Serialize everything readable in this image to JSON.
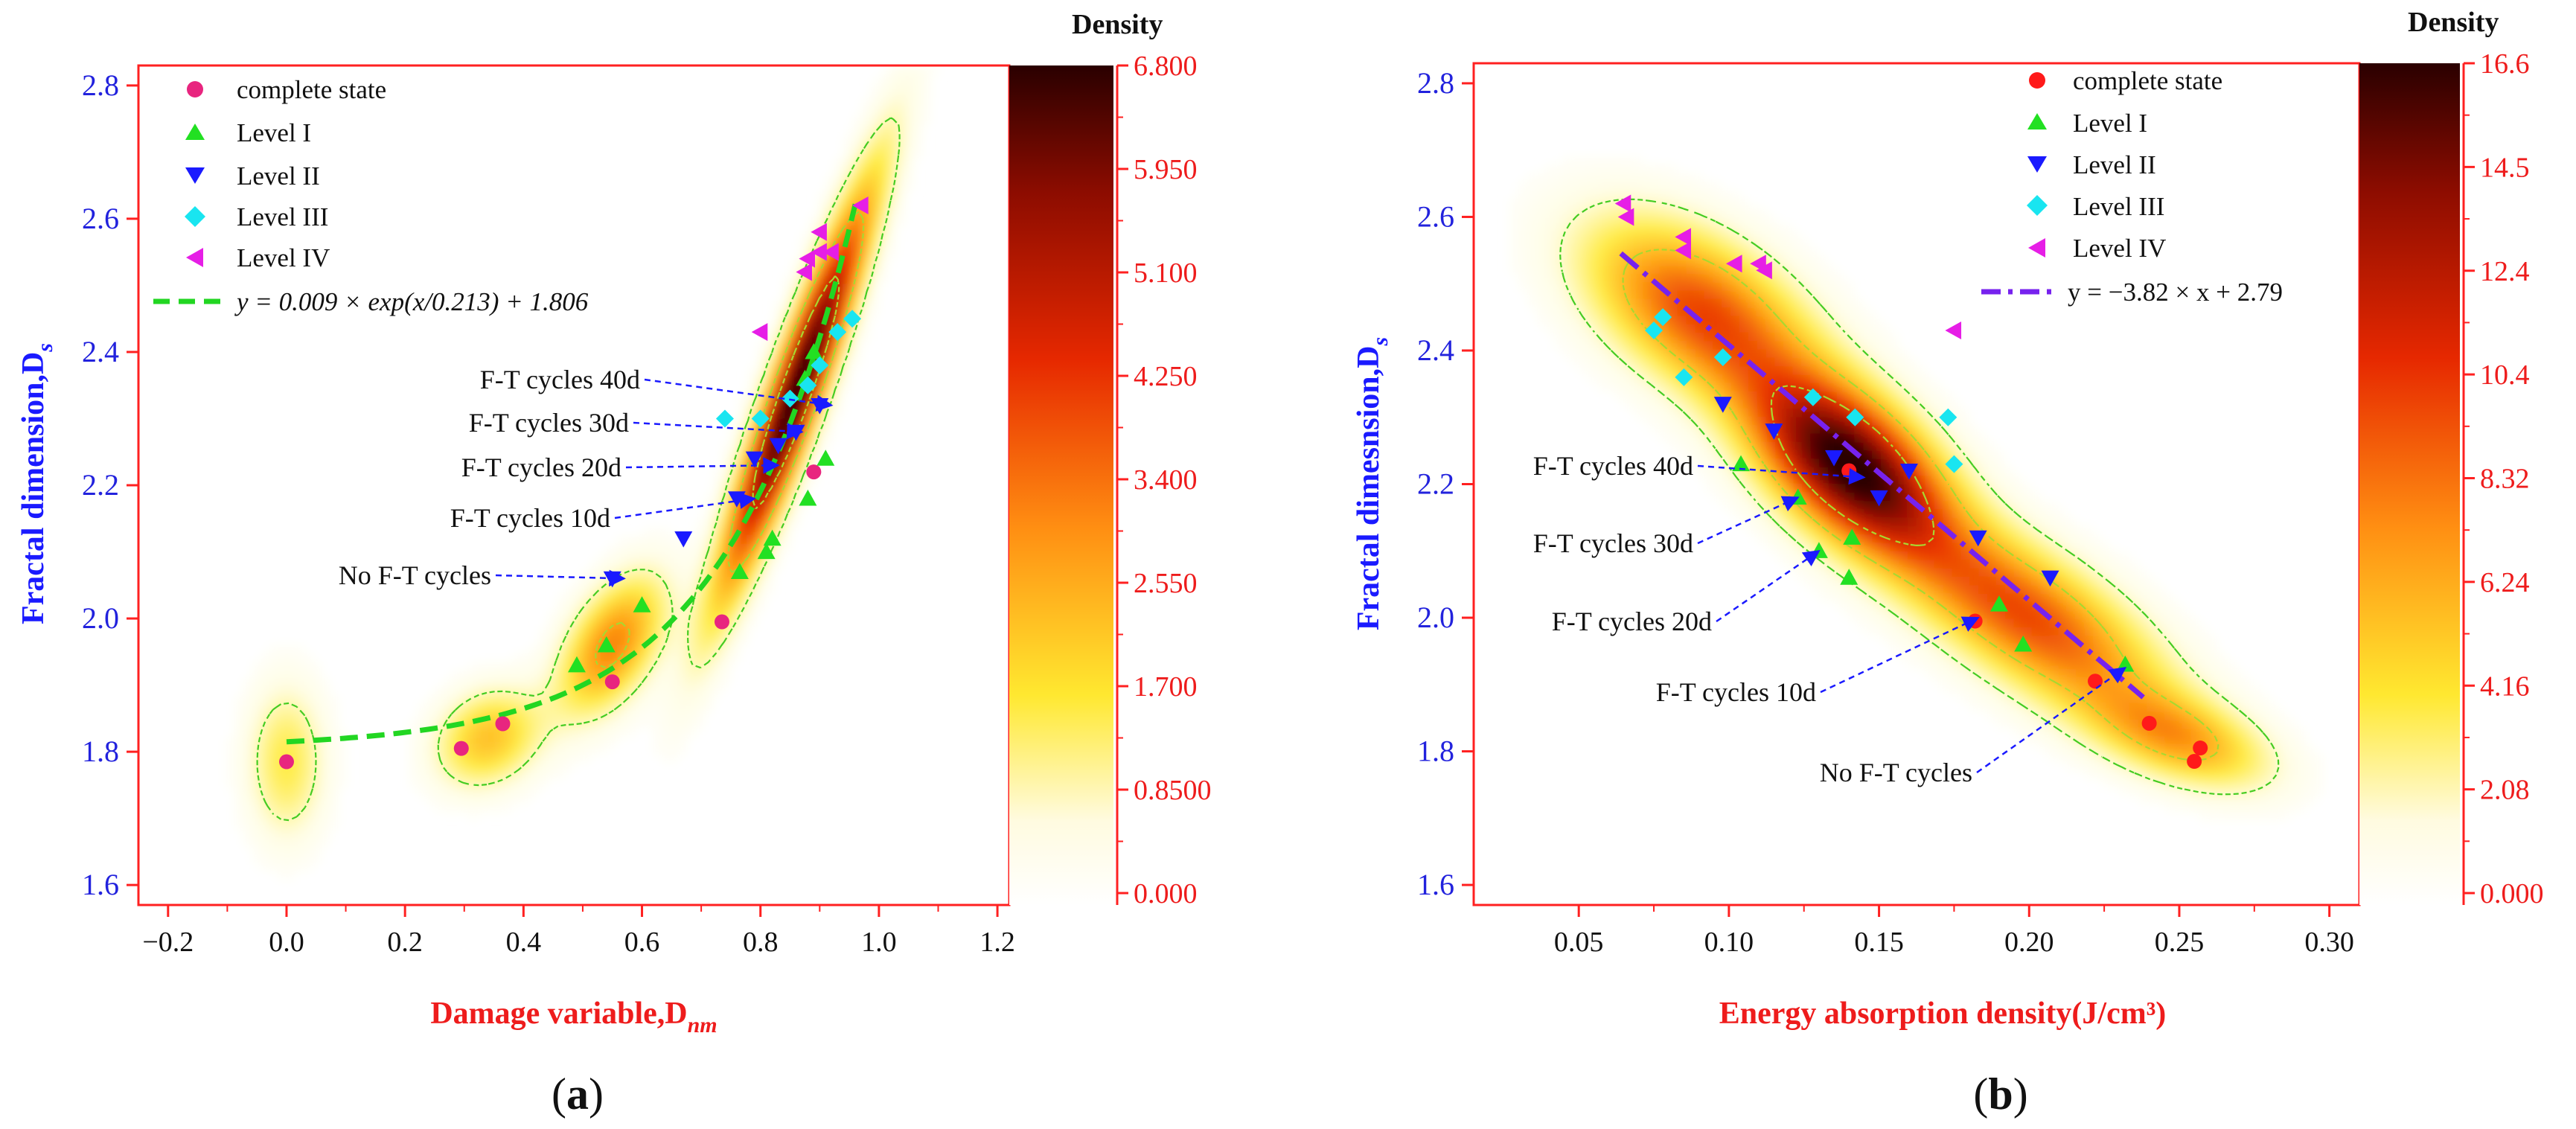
{
  "panels": [
    {
      "id": "a",
      "caption_letter": "a",
      "caption": "(a)",
      "colorbar": {
        "title": "Density",
        "ticks": [
          "0.000",
          "0.8500",
          "1.700",
          "2.550",
          "3.400",
          "4.250",
          "5.100",
          "5.950",
          "6.800"
        ],
        "min": 0,
        "max": 6.8
      },
      "legend": [
        "complete state",
        "Level I",
        "Level II",
        "Level III",
        "Level IV"
      ],
      "fit_label": "y = 0.009 × exp(x/0.213) + 1.806",
      "xlabel": "Damage variable,D",
      "xlabel_sub": "nm",
      "ylabel": "Fractal dimension,D",
      "ylabel_sub": "s",
      "annotations": [
        "F-T cycles 40d",
        "F-T cycles 30d",
        "F-T cycles 20d",
        "F-T cycles 10d",
        "No F-T cycles"
      ]
    },
    {
      "id": "b",
      "caption_letter": "b",
      "caption": "(b)",
      "colorbar": {
        "title": "Density",
        "ticks": [
          "0.000",
          "2.08",
          "4.16",
          "6.24",
          "8.32",
          "10.4",
          "12.4",
          "14.5",
          "16.6"
        ],
        "min": 0,
        "max": 16.6
      },
      "legend": [
        "complete state",
        "Level I",
        "Level II",
        "Level III",
        "Level IV"
      ],
      "fit_label": "y = −3.82 × x + 2.79",
      "xlabel": "Energy absorption density(J/cm³)",
      "ylabel": "Fractal dimesnsion,D",
      "ylabel_sub": "s",
      "annotations": [
        "F-T cycles 40d",
        "F-T cycles 30d",
        "F-T cycles 20d",
        "F-T cycles 10d",
        "No F-T cycles"
      ]
    }
  ],
  "chart_data": [
    {
      "type": "scatter",
      "panel": "a",
      "title": "",
      "xlabel": "Damage variable, D_nm",
      "ylabel": "Fractal dimension, D_s",
      "xlim": [
        -0.25,
        1.22
      ],
      "ylim": [
        1.57,
        2.83
      ],
      "xticks": [
        -0.2,
        0.0,
        0.2,
        0.4,
        0.6,
        0.8,
        1.0,
        1.2
      ],
      "yticks": [
        1.6,
        1.8,
        2.0,
        2.2,
        2.4,
        2.6,
        2.8
      ],
      "series": [
        {
          "name": "complete state",
          "color": "#e8257f",
          "marker": "circle",
          "points": [
            [
              0.0,
              1.785
            ],
            [
              0.295,
              1.805
            ],
            [
              0.365,
              1.842
            ],
            [
              0.55,
              1.905
            ],
            [
              0.735,
              1.995
            ],
            [
              0.89,
              2.22
            ]
          ]
        },
        {
          "name": "Level I",
          "color": "#22e022",
          "marker": "triangle-up",
          "points": [
            [
              0.49,
              1.93
            ],
            [
              0.54,
              1.96
            ],
            [
              0.6,
              2.02
            ],
            [
              0.765,
              2.07
            ],
            [
              0.81,
              2.1
            ],
            [
              0.82,
              2.12
            ],
            [
              0.88,
              2.18
            ],
            [
              0.91,
              2.24
            ],
            [
              0.89,
              2.4
            ],
            [
              0.875,
              2.36
            ]
          ]
        },
        {
          "name": "Level II",
          "color": "#1a1aff",
          "marker": "triangle-down",
          "points": [
            [
              0.55,
              2.06
            ],
            [
              0.67,
              2.12
            ],
            [
              0.79,
              2.24
            ],
            [
              0.83,
              2.26
            ],
            [
              0.86,
              2.28
            ],
            [
              0.9,
              2.32
            ],
            [
              0.76,
              2.18
            ]
          ]
        },
        {
          "name": "Level III",
          "color": "#19e5f0",
          "marker": "diamond",
          "points": [
            [
              0.74,
              2.3
            ],
            [
              0.8,
              2.3
            ],
            [
              0.85,
              2.33
            ],
            [
              0.88,
              2.35
            ],
            [
              0.9,
              2.38
            ],
            [
              0.93,
              2.43
            ],
            [
              0.955,
              2.45
            ]
          ]
        },
        {
          "name": "Level IV",
          "color": "#e61ee6",
          "marker": "triangle-left",
          "points": [
            [
              0.8,
              2.43
            ],
            [
              0.875,
              2.52
            ],
            [
              0.88,
              2.54
            ],
            [
              0.9,
              2.55
            ],
            [
              0.9,
              2.58
            ],
            [
              0.92,
              2.55
            ],
            [
              0.97,
              2.62
            ]
          ]
        }
      ],
      "fit": {
        "label": "y = 0.009 × exp(x/0.213) + 1.806",
        "a": 0.009,
        "b": 0.213,
        "c": 1.806,
        "x_range": [
          0.0,
          0.96
        ],
        "color": "#22d622"
      },
      "density_blobs": [
        {
          "x": 0.86,
          "y": 2.34,
          "sx": 0.085,
          "sy": 0.2,
          "rho": 0.93,
          "w": 1.0
        },
        {
          "x": 0.55,
          "y": 1.96,
          "sx": 0.06,
          "sy": 0.07,
          "rho": 0.5,
          "w": 0.45
        },
        {
          "x": 0.34,
          "y": 1.82,
          "sx": 0.06,
          "sy": 0.05,
          "rho": 0.2,
          "w": 0.32
        },
        {
          "x": 0.0,
          "y": 1.785,
          "sx": 0.045,
          "sy": 0.08,
          "rho": 0.0,
          "w": 0.22
        }
      ],
      "contour_levels": [
        0.12,
        0.4,
        0.68
      ],
      "annotations": [
        {
          "text": "F-T cycles 40d",
          "target": [
            0.92,
            2.32
          ]
        },
        {
          "text": "F-T cycles 30d",
          "target": [
            0.87,
            2.28
          ]
        },
        {
          "text": "F-T cycles 20d",
          "target": [
            0.83,
            2.23
          ]
        },
        {
          "text": "F-T cycles 10d",
          "target": [
            0.79,
            2.18
          ]
        },
        {
          "text": "No F-T cycles",
          "target": [
            0.57,
            2.06
          ]
        }
      ]
    },
    {
      "type": "scatter",
      "panel": "b",
      "title": "",
      "xlabel": "Energy absorption density(J/cm³)",
      "ylabel": "Fractal dimesnsion, D_s",
      "xlim": [
        0.015,
        0.31
      ],
      "ylim": [
        1.57,
        2.83
      ],
      "xticks": [
        0.05,
        0.1,
        0.15,
        0.2,
        0.25,
        0.3
      ],
      "yticks": [
        1.6,
        1.8,
        2.0,
        2.2,
        2.4,
        2.6,
        2.8
      ],
      "series": [
        {
          "name": "complete state",
          "color": "#ff1a1a",
          "marker": "circle",
          "points": [
            [
              0.14,
              2.22
            ],
            [
              0.182,
              1.995
            ],
            [
              0.222,
              1.905
            ],
            [
              0.24,
              1.842
            ],
            [
              0.255,
              1.785
            ],
            [
              0.257,
              1.805
            ]
          ]
        },
        {
          "name": "Level I",
          "color": "#22e022",
          "marker": "triangle-up",
          "points": [
            [
              0.104,
              2.23
            ],
            [
              0.123,
              2.18
            ],
            [
              0.13,
              2.1
            ],
            [
              0.14,
              2.06
            ],
            [
              0.141,
              2.12
            ],
            [
              0.19,
              2.02
            ],
            [
              0.198,
              1.96
            ],
            [
              0.232,
              1.93
            ]
          ]
        },
        {
          "name": "Level II",
          "color": "#1a1aff",
          "marker": "triangle-down",
          "points": [
            [
              0.098,
              2.32
            ],
            [
              0.115,
              2.28
            ],
            [
              0.135,
              2.24
            ],
            [
              0.15,
              2.18
            ],
            [
              0.16,
              2.22
            ],
            [
              0.183,
              2.12
            ],
            [
              0.207,
              2.06
            ]
          ]
        },
        {
          "name": "Level III",
          "color": "#19e5f0",
          "marker": "diamond",
          "points": [
            [
              0.075,
              2.43
            ],
            [
              0.078,
              2.45
            ],
            [
              0.085,
              2.36
            ],
            [
              0.098,
              2.39
            ],
            [
              0.128,
              2.33
            ],
            [
              0.142,
              2.3
            ],
            [
              0.173,
              2.3
            ],
            [
              0.175,
              2.23
            ]
          ]
        },
        {
          "name": "Level IV",
          "color": "#e61ee6",
          "marker": "triangle-left",
          "points": [
            [
              0.065,
              2.62
            ],
            [
              0.066,
              2.6
            ],
            [
              0.085,
              2.57
            ],
            [
              0.085,
              2.55
            ],
            [
              0.102,
              2.53
            ],
            [
              0.11,
              2.53
            ],
            [
              0.112,
              2.52
            ],
            [
              0.175,
              2.43
            ]
          ]
        }
      ],
      "fit": {
        "label": "y = −3.82 × x + 2.79",
        "slope": -3.82,
        "intercept": 2.79,
        "x_range": [
          0.064,
          0.238
        ],
        "color": "#7722ee"
      },
      "density_blobs": [
        {
          "x": 0.14,
          "y": 2.23,
          "sx": 0.022,
          "sy": 0.09,
          "rho": -0.55,
          "w": 1.0
        },
        {
          "x": 0.09,
          "y": 2.46,
          "sx": 0.025,
          "sy": 0.09,
          "rho": -0.5,
          "w": 0.55
        },
        {
          "x": 0.2,
          "y": 2.0,
          "sx": 0.03,
          "sy": 0.1,
          "rho": -0.7,
          "w": 0.55
        },
        {
          "x": 0.25,
          "y": 1.82,
          "sx": 0.02,
          "sy": 0.05,
          "rho": -0.5,
          "w": 0.35
        }
      ],
      "contour_levels": [
        0.1,
        0.33,
        0.62
      ],
      "annotations": [
        {
          "text": "F-T cycles 40d",
          "target": [
            0.145,
            2.21
          ]
        },
        {
          "text": "F-T cycles 30d",
          "target": [
            0.123,
            2.18
          ]
        },
        {
          "text": "F-T cycles 20d",
          "target": [
            0.13,
            2.1
          ]
        },
        {
          "text": "F-T cycles 10d",
          "target": [
            0.183,
            2.0
          ]
        },
        {
          "text": "No F-T cycles",
          "target": [
            0.232,
            1.925
          ]
        }
      ]
    }
  ]
}
